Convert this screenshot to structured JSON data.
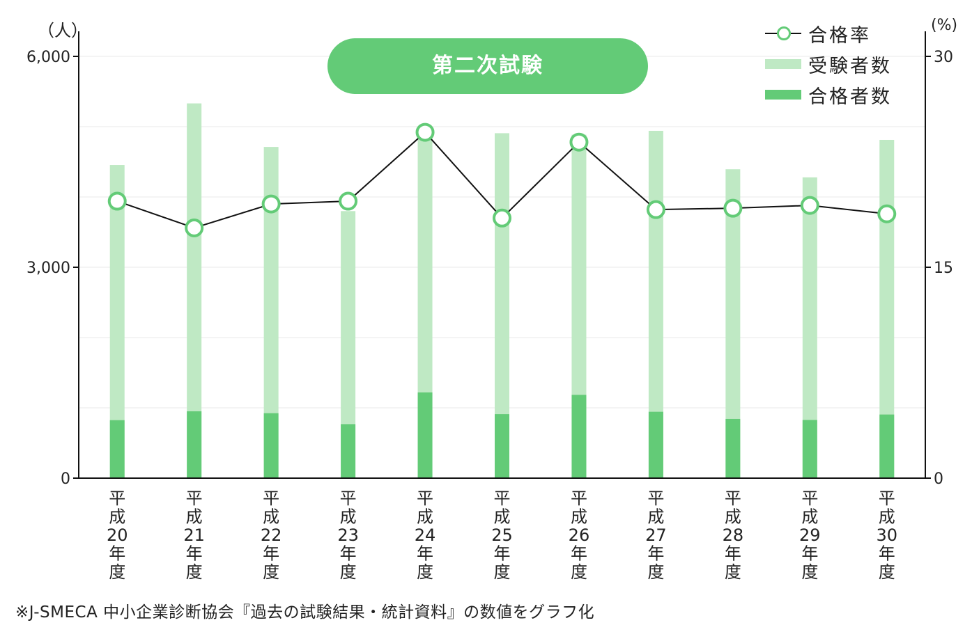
{
  "title": "第二次試験",
  "left_unit": "（人）",
  "right_unit": "(%)",
  "note": "※J-SMECA 中小企業診断協会『過去の試験結果・統計資料』の数値をグラフ化",
  "legend": {
    "rate": "合格率",
    "examinees": "受験者数",
    "passers": "合格者数"
  },
  "colors": {
    "examinees": "#bfe9c4",
    "passers": "#63cb77",
    "rate_marker": "#63cb77",
    "rate_line": "#111111"
  },
  "chart_data": {
    "type": "bar",
    "categories": [
      "平成20年度",
      "平成21年度",
      "平成22年度",
      "平成23年度",
      "平成24年度",
      "平成25年度",
      "平成26年度",
      "平成27年度",
      "平成28年度",
      "平成29年度",
      "平成30年度"
    ],
    "series": [
      {
        "name": "受験者数",
        "type": "bar",
        "axis": "left",
        "values": [
          4455,
          5331,
          4712,
          3799,
          4942,
          4907,
          4885,
          4941,
          4394,
          4279,
          4812
        ]
      },
      {
        "name": "合格者数",
        "type": "bar",
        "axis": "left",
        "values": [
          825,
          951,
          924,
          768,
          1220,
          910,
          1185,
          944,
          842,
          828,
          905
        ]
      },
      {
        "name": "合格率",
        "type": "line",
        "axis": "right",
        "unit": "%",
        "values": [
          19.7,
          17.8,
          19.5,
          19.7,
          24.6,
          18.5,
          23.9,
          19.1,
          19.2,
          19.4,
          18.8
        ]
      }
    ],
    "y_left": {
      "min": 0,
      "max": 6000,
      "ticks": [
        "0",
        "3,000",
        "6,000"
      ]
    },
    "y_right": {
      "min": 0,
      "max": 30,
      "ticks": [
        "0",
        "15",
        "30"
      ]
    },
    "grid": true,
    "legend_position": "top-right"
  }
}
